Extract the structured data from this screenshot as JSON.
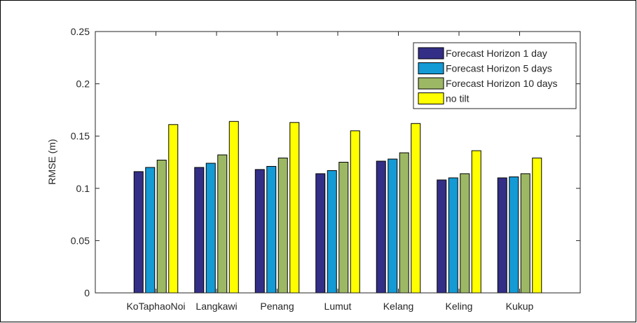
{
  "chart_data": {
    "type": "bar",
    "title": "",
    "xlabel": "",
    "ylabel": "RMSE (m)",
    "ylim": [
      0,
      0.25
    ],
    "yticks": [
      "0",
      "0.05",
      "0.1",
      "0.15",
      "0.2",
      "0.25"
    ],
    "grid": false,
    "legend_position": "top-right",
    "categories": [
      "KoTaphaoNoi",
      "Langkawi",
      "Penang",
      "Lumut",
      "Kelang",
      "Keling",
      "Kukup"
    ],
    "series": [
      {
        "name": "Forecast Horizon 1 day",
        "color": "#332e86",
        "values": [
          0.116,
          0.12,
          0.118,
          0.114,
          0.126,
          0.108,
          0.11
        ]
      },
      {
        "name": "Forecast Horizon 5 days",
        "color": "#149ad5",
        "values": [
          0.12,
          0.124,
          0.121,
          0.117,
          0.128,
          0.11,
          0.111
        ]
      },
      {
        "name": "Forecast Horizon 10 days",
        "color": "#9db864",
        "values": [
          0.127,
          0.132,
          0.129,
          0.125,
          0.134,
          0.114,
          0.114
        ]
      },
      {
        "name": "no tilt",
        "color": "#ffff00",
        "values": [
          0.161,
          0.164,
          0.163,
          0.155,
          0.162,
          0.136,
          0.129
        ]
      }
    ]
  }
}
